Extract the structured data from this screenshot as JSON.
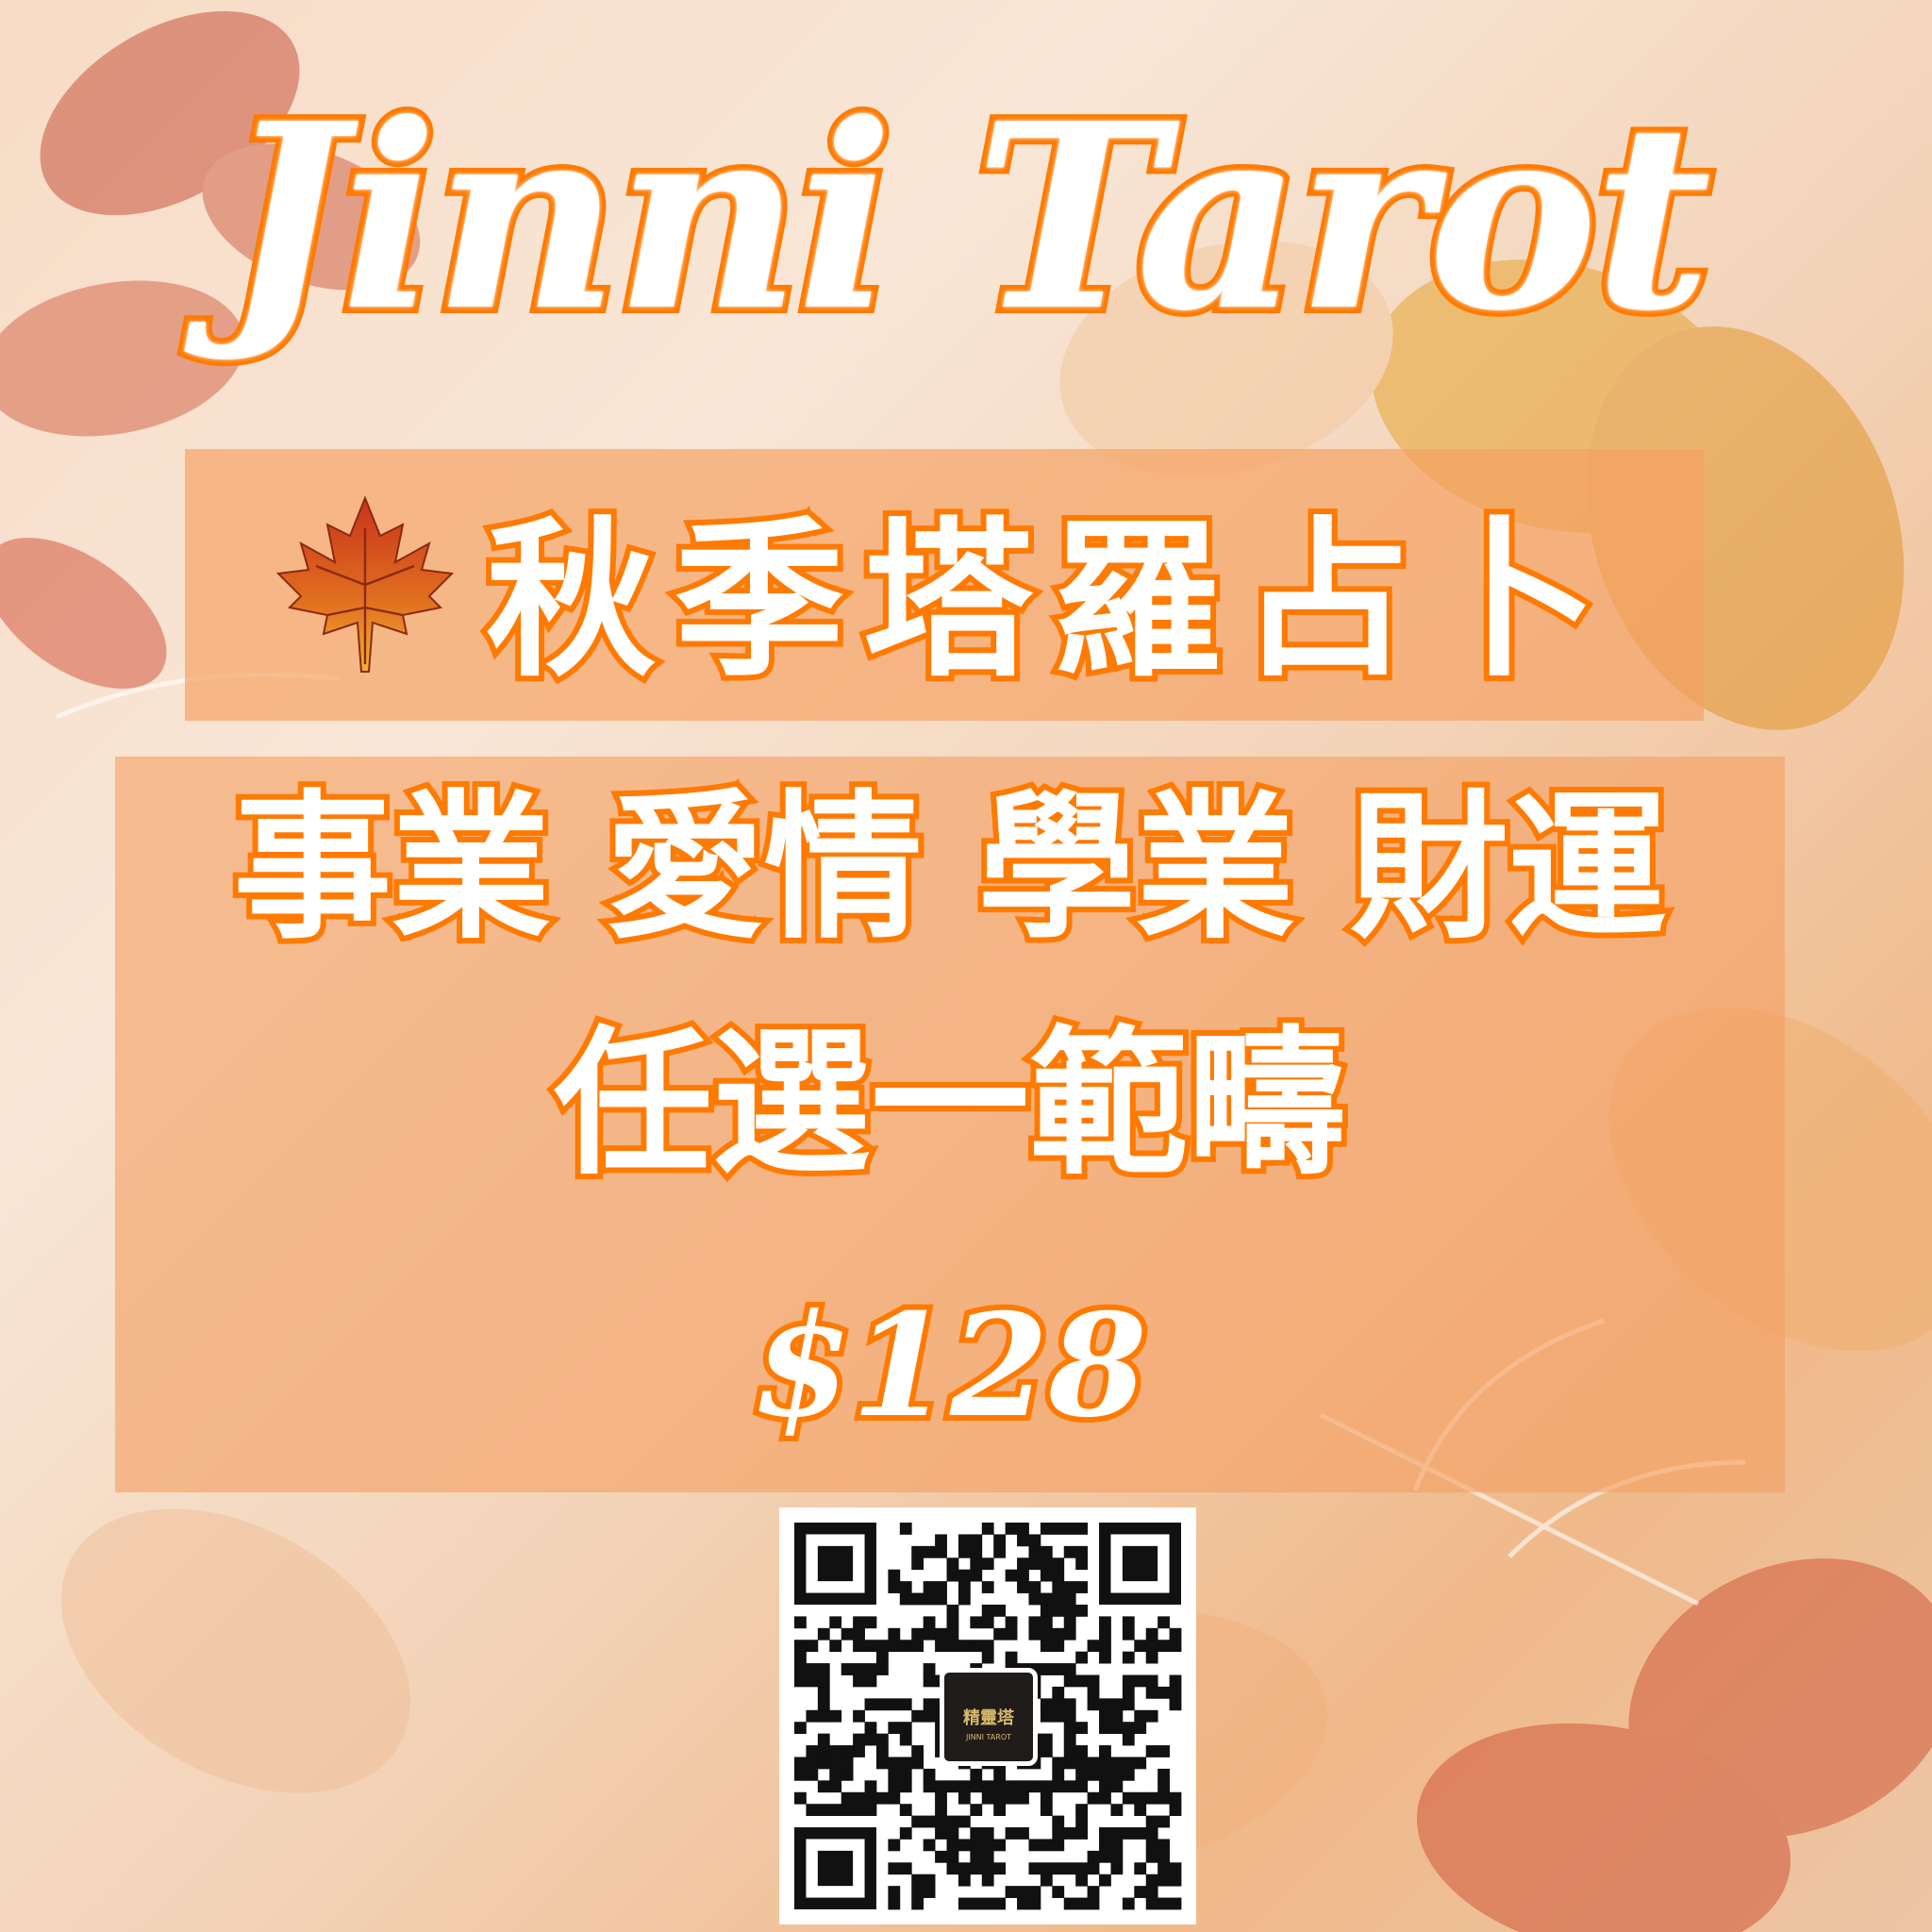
{
  "title": "Jinni Tarot",
  "banner": {
    "icon": "maple-leaf-icon",
    "text": "秋季塔羅占卜"
  },
  "categories_line": "事業 愛情 學業 財運",
  "choose_line": "任選一範疇",
  "price": "$128",
  "qr": {
    "logo_text": "精靈塔",
    "logo_subtext": "JINNI TAROT"
  },
  "colors": {
    "accent": "#ff7a00",
    "panel": "#f4a062",
    "text": "#ffffff"
  }
}
